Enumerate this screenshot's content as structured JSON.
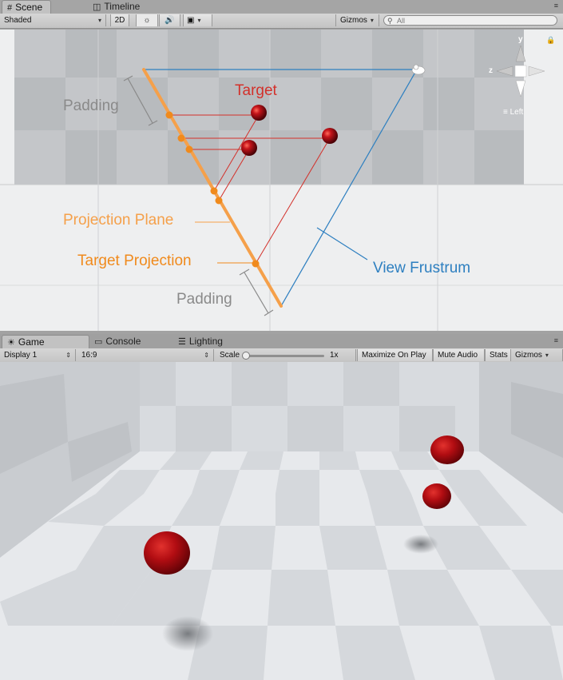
{
  "scene_panel": {
    "tabs": [
      {
        "label": "Scene",
        "icon": "grid-icon"
      },
      {
        "label": "Timeline",
        "icon": "timeline-icon"
      }
    ],
    "toolbar": {
      "shading_mode": "Shaded",
      "mode_2d": "2D",
      "gizmos": "Gizmos",
      "search_placeholder": "All"
    },
    "gizmo_axes": {
      "y": "y",
      "z": "z",
      "view_label": "Left"
    }
  },
  "diagram_labels": {
    "padding_top": "Padding",
    "target": "Target",
    "projection_plane": "Projection Plane",
    "target_projection": "Target Projection",
    "view_frustrum": "View Frustrum",
    "padding_bottom": "Padding"
  },
  "game_panel": {
    "tabs": [
      {
        "label": "Game",
        "icon": "game-icon"
      },
      {
        "label": "Console",
        "icon": "console-icon"
      },
      {
        "label": "Lighting",
        "icon": "lighting-icon"
      }
    ],
    "toolbar": {
      "display": "Display 1",
      "aspect": "16:9",
      "scale_label": "Scale",
      "scale_value": "1x",
      "maximize_on_play": "Maximize On Play",
      "mute_audio": "Mute Audio",
      "stats": "Stats",
      "gizmos": "Gizmos"
    }
  },
  "colors": {
    "orange": "#f39c3a",
    "red": "#d3302a",
    "blue": "#2d7fc0",
    "gray_label": "#8a8a8a"
  }
}
